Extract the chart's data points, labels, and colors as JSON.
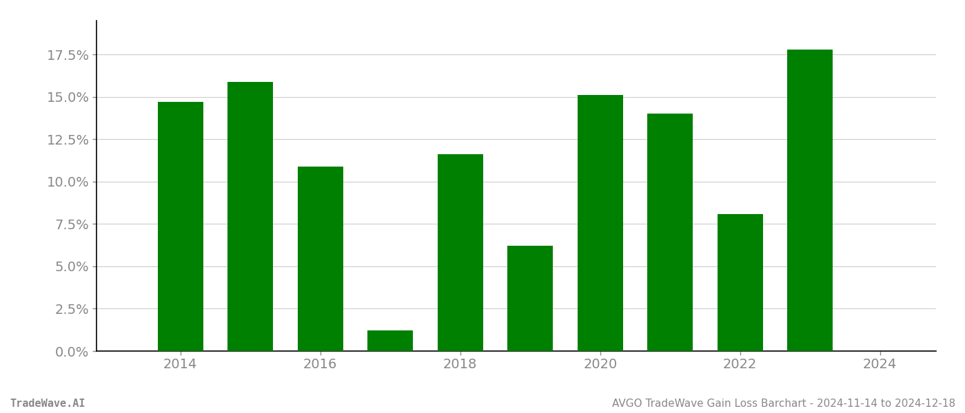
{
  "years": [
    2014,
    2015,
    2016,
    2017,
    2018,
    2019,
    2020,
    2021,
    2022,
    2023
  ],
  "values": [
    0.147,
    0.159,
    0.109,
    0.012,
    0.116,
    0.062,
    0.151,
    0.14,
    0.081,
    0.178
  ],
  "bar_color": "#008000",
  "background_color": "#ffffff",
  "grid_color": "#cccccc",
  "tick_color": "#888888",
  "spine_color": "#000000",
  "footer_left": "TradeWave.AI",
  "footer_right": "AVGO TradeWave Gain Loss Barchart - 2024-11-14 to 2024-12-18",
  "footer_color": "#888888",
  "footer_fontsize": 11,
  "ylim": [
    0,
    0.195
  ],
  "yticks": [
    0.0,
    0.025,
    0.05,
    0.075,
    0.1,
    0.125,
    0.15,
    0.175
  ],
  "xtick_labels": [
    "2014",
    "2016",
    "2018",
    "2020",
    "2022",
    "2024"
  ],
  "xtick_positions": [
    2014,
    2016,
    2018,
    2020,
    2022,
    2024
  ],
  "xlim": [
    2012.8,
    2024.8
  ],
  "bar_width": 0.65,
  "tick_fontsize": 14,
  "figsize": [
    14.0,
    6.0
  ],
  "dpi": 100
}
